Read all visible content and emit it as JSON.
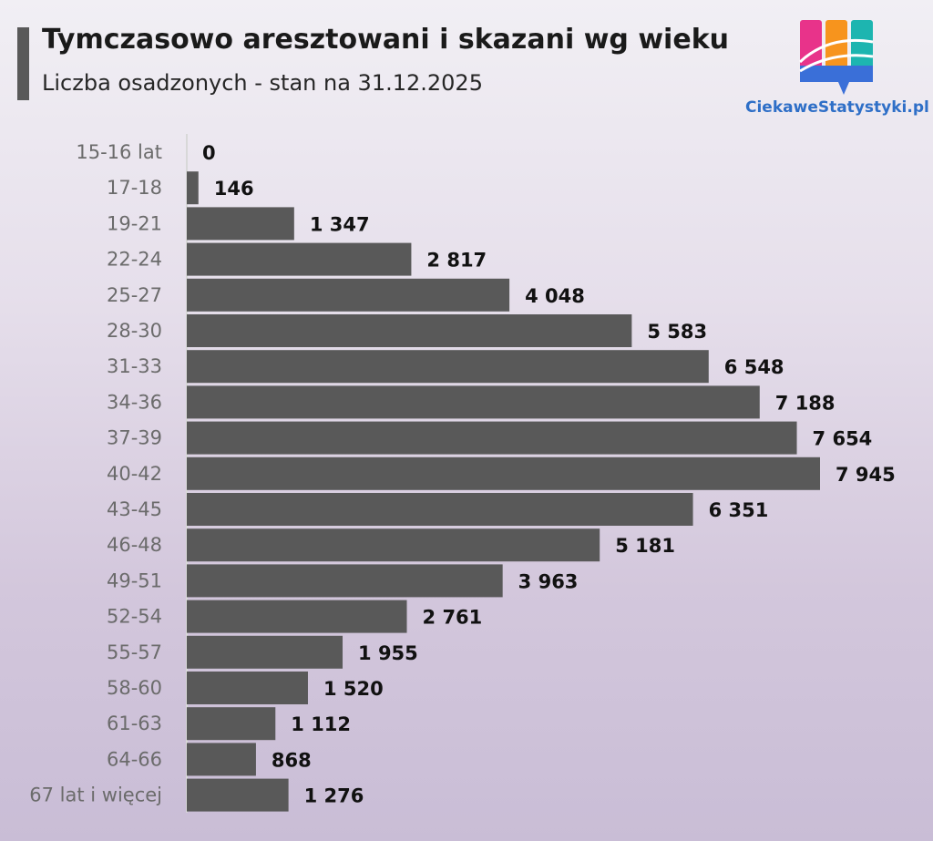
{
  "header": {
    "title": "Tymczasowo aresztowani i skazani wg wieku",
    "subtitle": "Liczba osadzonych - stan na 31.12.2025"
  },
  "logo": {
    "text": "CiekaweStatystyki.pl",
    "icon": "chart-bubble-logo-icon",
    "colors": [
      "#e8338a",
      "#f7941d",
      "#1db5b0",
      "#3a6fd8"
    ]
  },
  "chart_data": {
    "type": "bar",
    "orientation": "horizontal",
    "title": "Tymczasowo aresztowani i skazani wg wieku",
    "subtitle": "Liczba osadzonych - stan na 31.12.2025",
    "categories": [
      "15-16 lat",
      "17-18",
      "19-21",
      "22-24",
      "25-27",
      "28-30",
      "31-33",
      "34-36",
      "37-39",
      "40-42",
      "43-45",
      "46-48",
      "49-51",
      "52-54",
      "55-57",
      "58-60",
      "61-63",
      "64-66",
      "67 lat i więcej"
    ],
    "values": [
      0,
      146,
      1347,
      2817,
      4048,
      5583,
      6548,
      7188,
      7654,
      7945,
      6351,
      5181,
      3963,
      2761,
      1955,
      1520,
      1112,
      868,
      1276
    ],
    "value_labels": [
      "0",
      "146",
      "1 347",
      "2 817",
      "4 048",
      "5 583",
      "6 548",
      "7 188",
      "7 654",
      "7 945",
      "6 351",
      "5 181",
      "3 963",
      "2 761",
      "1 955",
      "1 520",
      "1 112",
      "868",
      "1 276"
    ],
    "xlim": [
      0,
      7945
    ],
    "bar_color": "#595959",
    "grid": false,
    "legend": "none"
  }
}
